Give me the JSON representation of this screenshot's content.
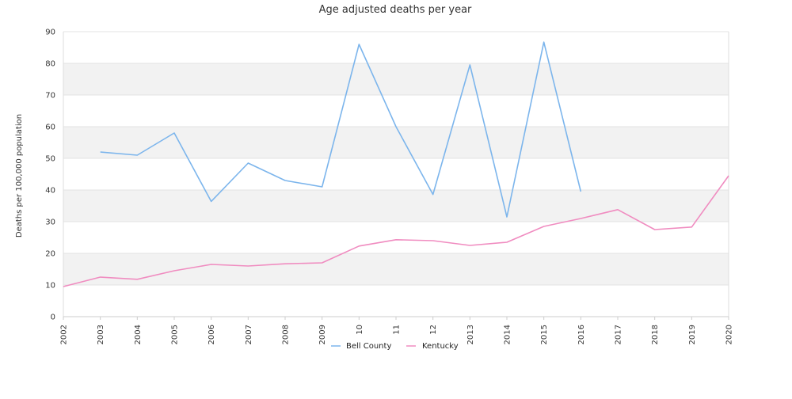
{
  "chart_data": {
    "type": "line",
    "title": "Age adjusted deaths per year",
    "xlabel": "",
    "ylabel": "Deaths per 100,000 population",
    "ylim": [
      0,
      90
    ],
    "yticks": [
      0,
      10,
      20,
      30,
      40,
      50,
      60,
      70,
      80,
      90
    ],
    "x": [
      "2002",
      "2003",
      "2004",
      "2005",
      "2006",
      "2007",
      "2008",
      "2009",
      "10",
      "11",
      "12",
      "2013",
      "2014",
      "2015",
      "2016",
      "2017",
      "2018",
      "2019",
      "2020"
    ],
    "grid": true,
    "grid_bands": "alternating",
    "legend_position": "bottom",
    "series": [
      {
        "name": "Bell County",
        "color": "#7cb5ec",
        "values": [
          null,
          52,
          51,
          58,
          36.4,
          48.5,
          43,
          41,
          86,
          60,
          38.6,
          79.5,
          31.5,
          86.7,
          39.5,
          null,
          null,
          null,
          null
        ]
      },
      {
        "name": "Kentucky",
        "color": "#f08cc0",
        "values": [
          9.5,
          12.5,
          11.8,
          14.5,
          16.5,
          16,
          16.7,
          17,
          22.3,
          24.3,
          24,
          22.5,
          23.5,
          28.5,
          31,
          33.8,
          27.5,
          28.3,
          44.5
        ]
      }
    ]
  }
}
